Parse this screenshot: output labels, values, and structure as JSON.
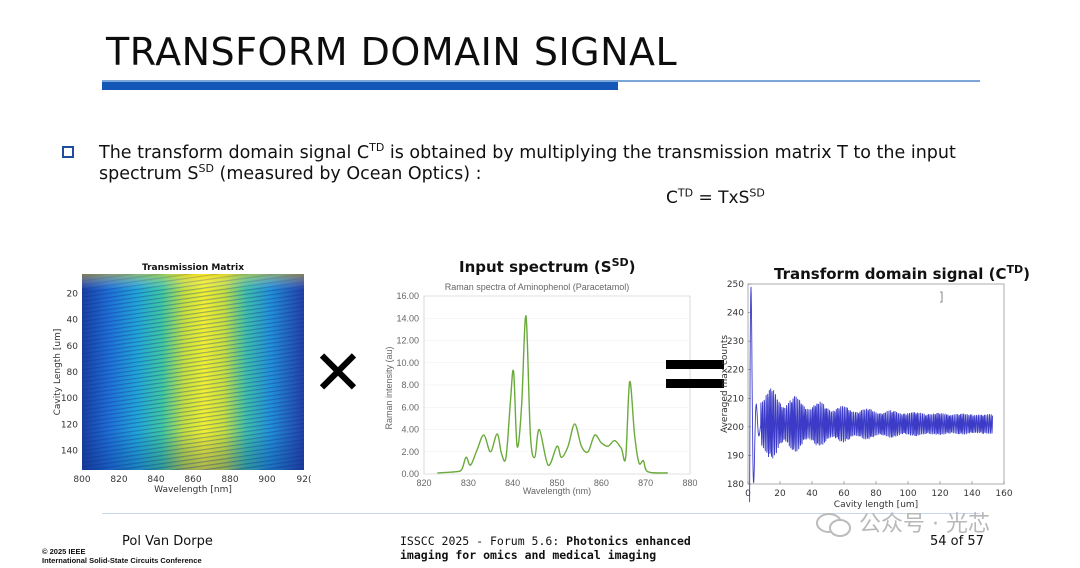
{
  "slide": {
    "title": "TRANSFORM DOMAIN SIGNAL",
    "bullet": {
      "p1": "The transform domain signal C",
      "sup1": "TD",
      "p2": " is obtained by multiplying the transmission matrix T to the input spectrum S",
      "sup2": "SD",
      "p3": " (measured by Ocean Optics) :"
    },
    "formula": {
      "c": "C",
      "c_sup": "TD",
      "mid": " = TxS",
      "s_sup": "SD"
    }
  },
  "panels": {
    "matrix": {
      "title": "Transmission Matrix",
      "xlabel": "Wavelength [nm]",
      "ylabel": "Cavity Length [um]",
      "xticks": [
        "800",
        "820",
        "840",
        "860",
        "880",
        "900",
        "92("
      ],
      "yticks": [
        "20",
        "40",
        "60",
        "80",
        "100",
        "120",
        "140"
      ]
    },
    "spectrum": {
      "title": "Input spectrum (S",
      "title_sup": "SD",
      "title_end": ")",
      "subtitle": "Raman spectra of Aminophenol (Paracetamol)",
      "ylabel": "Raman intensity (au)",
      "xlabel": "Wavelength (nm)",
      "yticks": [
        "0.00",
        "2.00",
        "4.00",
        "6.00",
        "8.00",
        "10.00",
        "12.00",
        "14.00",
        "16.00"
      ],
      "xticks": [
        "820",
        "830",
        "840",
        "850",
        "860",
        "870",
        "880"
      ]
    },
    "transform": {
      "title": "Transform domain signal (C",
      "title_sup": "TD",
      "title_end": ")",
      "xlabel": "Cavity length [um]",
      "ylabel": "Averaged max counts",
      "yticks": [
        "180",
        "190",
        "200",
        "210",
        "220",
        "230",
        "240",
        "250"
      ],
      "xticks": [
        "0",
        "20",
        "40",
        "60",
        "80",
        "100",
        "120",
        "140",
        "160"
      ]
    },
    "multiply_symbol": "✕",
    "equals_symbol": "="
  },
  "chart_data": [
    {
      "type": "heatmap",
      "title": "Transmission Matrix",
      "xlabel": "Wavelength [nm]",
      "ylabel": "Cavity Length [um]",
      "xlim": [
        800,
        920
      ],
      "ylim": [
        5,
        155
      ]
    },
    {
      "type": "line",
      "title": "Raman spectra of Aminophenol (Paracetamol)",
      "xlabel": "Wavelength (nm)",
      "ylabel": "Raman intensity (au)",
      "xlim": [
        820,
        880
      ],
      "ylim": [
        0,
        16
      ],
      "color": "#6aaa3a",
      "series": [
        {
          "x": [
            823,
            827,
            828.5,
            829.5,
            830.5,
            832,
            833.5,
            835,
            836.5,
            837.5,
            838.5,
            839.5,
            840.2,
            841,
            842,
            843,
            844,
            845,
            846,
            848,
            850,
            851,
            852.5,
            854,
            855.5,
            857,
            858.5,
            860,
            861.5,
            863,
            864.5,
            865.5,
            866.4,
            867.5,
            868.5,
            869.5,
            870.5,
            875
          ],
          "y": [
            0.1,
            0.2,
            0.4,
            1.5,
            0.8,
            2.2,
            3.5,
            2.0,
            3.6,
            1.8,
            1.5,
            6.5,
            9.2,
            2.5,
            6.0,
            14.2,
            3.5,
            1.5,
            4.0,
            0.8,
            2.5,
            1.5,
            2.5,
            4.5,
            2.5,
            2.0,
            3.5,
            2.8,
            2.5,
            3.0,
            2.3,
            1.5,
            8.3,
            3.5,
            1.0,
            1.2,
            0.2,
            0.1
          ]
        }
      ]
    },
    {
      "type": "line",
      "title": "Transform domain signal (C TD)",
      "xlabel": "Cavity length [um]",
      "ylabel": "Averaged max counts",
      "xlim": [
        0,
        160
      ],
      "ylim": [
        180,
        250
      ],
      "color": "#3b3bc8"
    }
  ],
  "footer": {
    "presenter": "Pol Van Dorpe",
    "conf_prefix": "ISSCC 2025 - Forum 5.6: ",
    "conf_bold1": "Photonics enhanced",
    "conf_bold2": "imaging for omics and medical imaging",
    "page": "54 of 57",
    "ieee1": "© 2025 IEEE",
    "ieee2": "International Solid-State Circuits Conference",
    "watermark": "公众号 · 光芯"
  }
}
